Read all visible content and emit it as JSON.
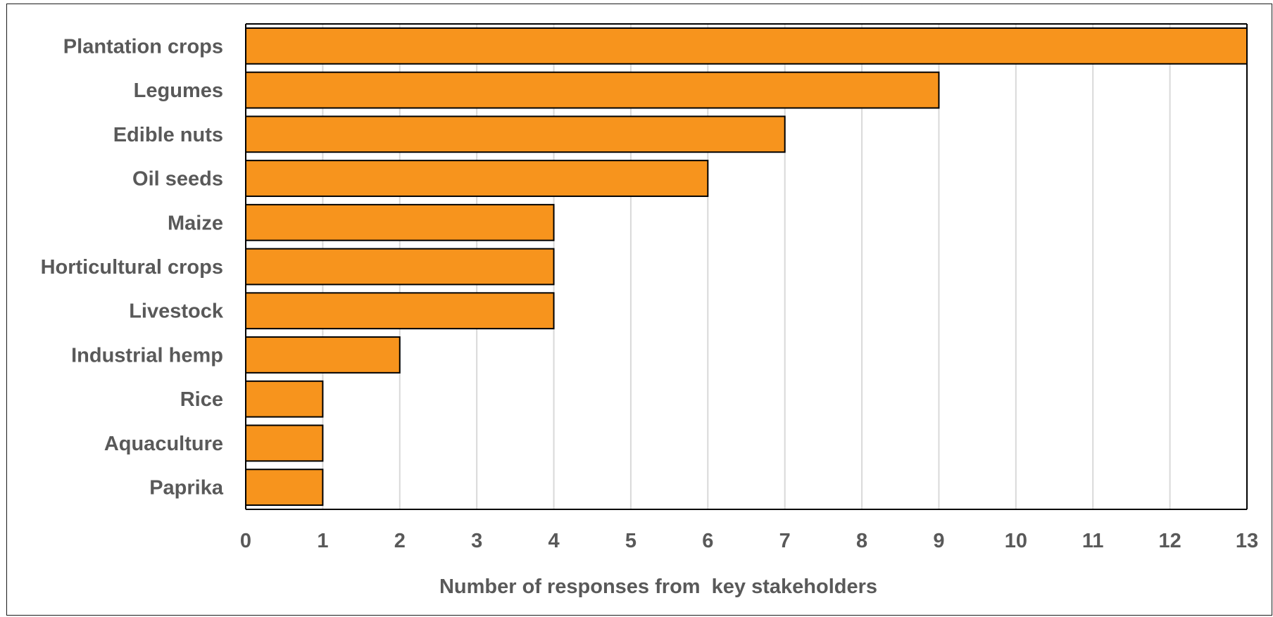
{
  "chart_data": {
    "type": "bar",
    "orientation": "horizontal",
    "categories": [
      "Plantation crops",
      "Legumes",
      "Edible nuts",
      "Oil seeds",
      "Maize",
      "Horticultural crops",
      "Livestock",
      "Industrial hemp",
      "Rice",
      "Aquaculture",
      "Paprika"
    ],
    "values": [
      13,
      9,
      7,
      6,
      4,
      4,
      4,
      2,
      1,
      1,
      1
    ],
    "xlabel": "Number of responses from  key stakeholders",
    "ylabel": "",
    "xlim": [
      0,
      13
    ],
    "xticks": [
      "0",
      "1",
      "2",
      "3",
      "4",
      "5",
      "6",
      "7",
      "8",
      "9",
      "10",
      "11",
      "12",
      "13"
    ],
    "grid": "vertical",
    "bar_color": "#F7941D",
    "bar_edge_color": "#000000",
    "text_color": "#595959"
  }
}
